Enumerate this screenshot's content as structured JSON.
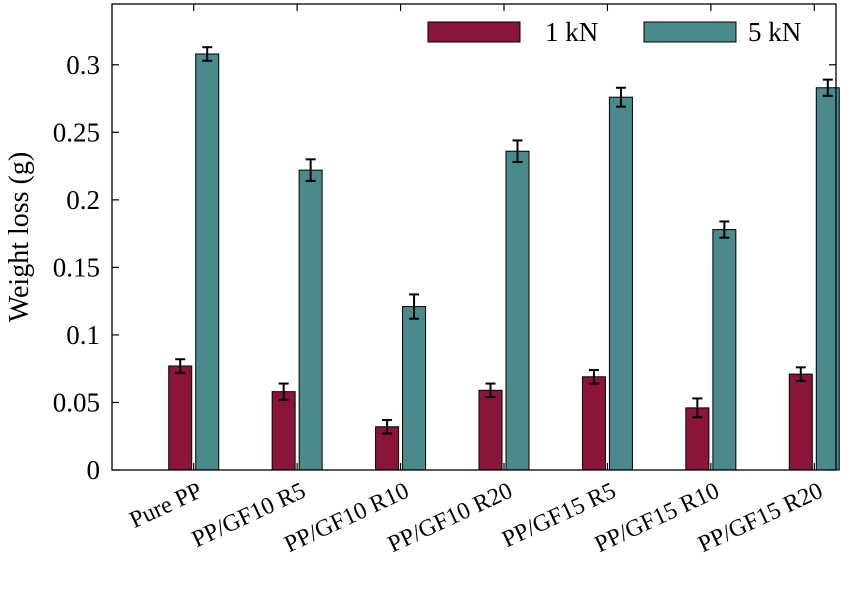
{
  "chart_data": {
    "type": "bar",
    "title": "",
    "xlabel": "",
    "ylabel": "Weight loss (g)",
    "ylim": [
      0,
      0.345
    ],
    "yticks": [
      0,
      0.05,
      0.1,
      0.15,
      0.2,
      0.25,
      0.3
    ],
    "ytick_labels": [
      "0",
      "0.05",
      "0.1",
      "0.15",
      "0.2",
      "0.25",
      "0.3"
    ],
    "grid": false,
    "legend_position": "top-right",
    "categories": [
      "Pure PP",
      "PP/GF10 R5",
      "PP/GF10 R10",
      "PP/GF10 R20",
      "PP/GF15 R5",
      "PP/GF15 R10",
      "PP/GF15 R20"
    ],
    "series": [
      {
        "name": "1 kN",
        "color": "#8b1538",
        "values": [
          0.077,
          0.058,
          0.032,
          0.059,
          0.069,
          0.046,
          0.071
        ],
        "errors": [
          0.005,
          0.006,
          0.005,
          0.005,
          0.005,
          0.007,
          0.005
        ]
      },
      {
        "name": "5 kN",
        "color": "#4a8a8a",
        "values": [
          0.308,
          0.222,
          0.121,
          0.236,
          0.276,
          0.178,
          0.283
        ],
        "errors": [
          0.005,
          0.008,
          0.009,
          0.008,
          0.007,
          0.006,
          0.006
        ]
      }
    ]
  }
}
